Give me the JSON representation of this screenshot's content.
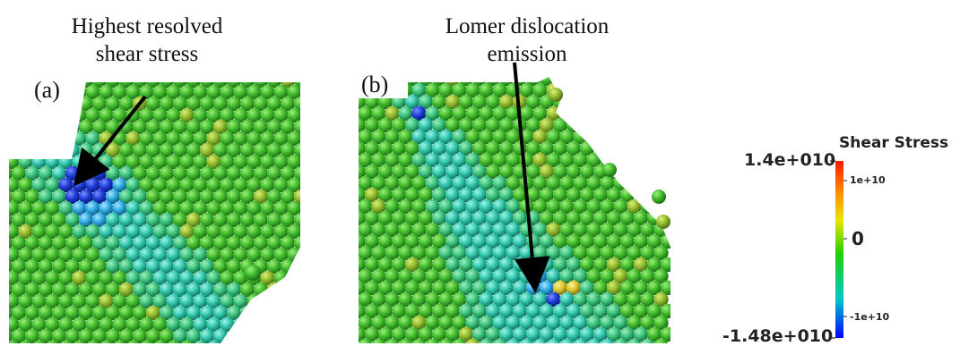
{
  "annotations": {
    "a_line1": "Highest resolved",
    "a_line2": "shear stress",
    "b_line1": "Lomer dislocation",
    "b_line2": "emission"
  },
  "panels": {
    "a_label": "(a)",
    "b_label": "(b)"
  },
  "colorbar": {
    "title": "Shear Stress",
    "max_label": "1.4e+010",
    "min_label": "-1.48e+010",
    "tick_pos": "1e+10",
    "tick_zero": "0",
    "tick_neg": "-1e+10",
    "range": [
      -14800000000.0,
      14000000000.0
    ],
    "colors": [
      "#ff1a00",
      "#ff8c00",
      "#e8e800",
      "#22d000",
      "#00c8c8",
      "#0000ff"
    ]
  },
  "colors": {
    "atom_green": "#3fbf2a",
    "atom_cyan": "#2ec8b0",
    "atom_blue": "#1a3fd6",
    "arrow": "#000000"
  }
}
